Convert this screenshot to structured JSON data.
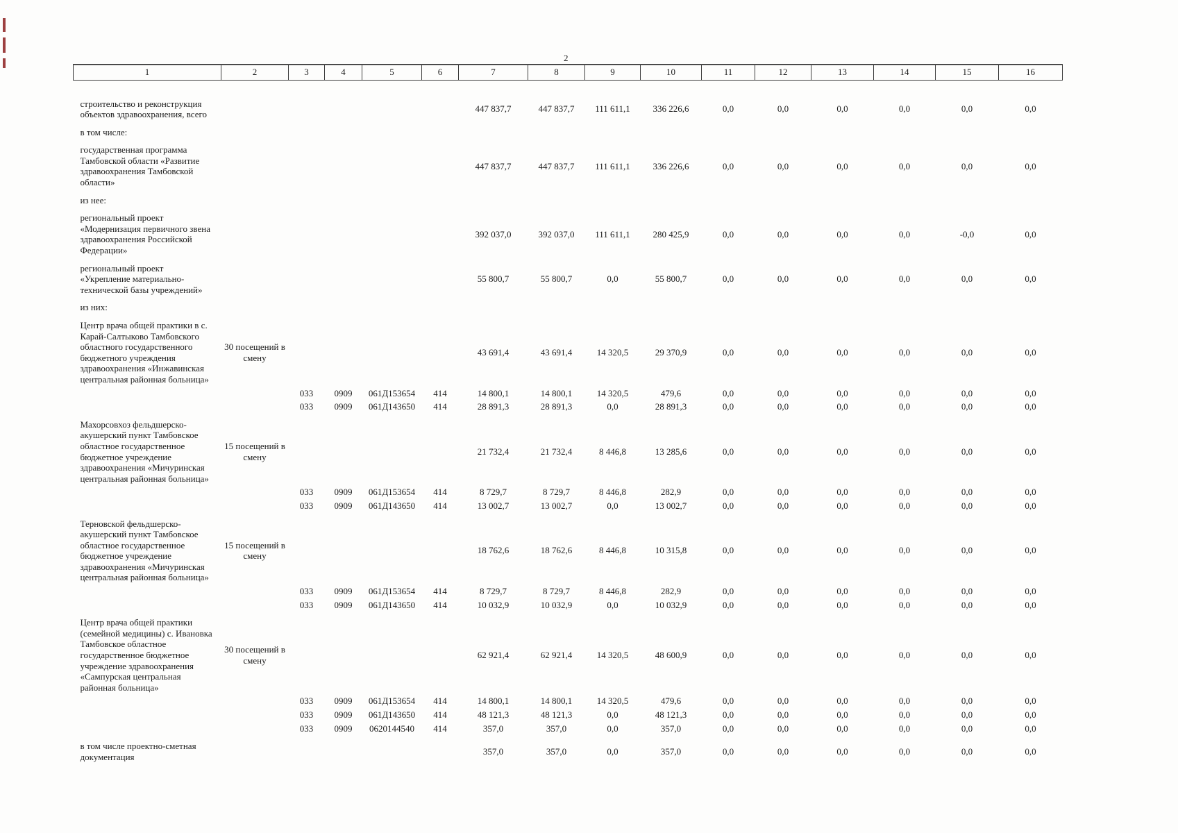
{
  "page": {
    "number": "2"
  },
  "table": {
    "columns": [
      "1",
      "2",
      "3",
      "4",
      "5",
      "6",
      "7",
      "8",
      "9",
      "10",
      "11",
      "12",
      "13",
      "14",
      "15",
      "16"
    ],
    "rows": [
      {
        "cells": [
          "строительство и реконструкция объектов здравоохранения, всего",
          "",
          "",
          "",
          "",
          "",
          "447 837,7",
          "447 837,7",
          "111 611,1",
          "336 226,6",
          "0,0",
          "0,0",
          "0,0",
          "0,0",
          "0,0",
          "0,0"
        ]
      },
      {
        "cells": [
          "в том числе:",
          "",
          "",
          "",
          "",
          "",
          "",
          "",
          "",
          "",
          "",
          "",
          "",
          "",
          "",
          ""
        ]
      },
      {
        "cells": [
          "государственная программа Тамбовской области «Развитие здравоохранения Тамбовской области»",
          "",
          "",
          "",
          "",
          "",
          "447 837,7",
          "447 837,7",
          "111 611,1",
          "336 226,6",
          "0,0",
          "0,0",
          "0,0",
          "0,0",
          "0,0",
          "0,0"
        ]
      },
      {
        "cells": [
          "из нее:",
          "",
          "",
          "",
          "",
          "",
          "",
          "",
          "",
          "",
          "",
          "",
          "",
          "",
          "",
          ""
        ]
      },
      {
        "cells": [
          "региональный проект «Модернизация первичного звена здравоохранения Российской Федерации»",
          "",
          "",
          "",
          "",
          "",
          "392 037,0",
          "392 037,0",
          "111 611,1",
          "280 425,9",
          "0,0",
          "0,0",
          "0,0",
          "0,0",
          "-0,0",
          "0,0"
        ]
      },
      {
        "cells": [
          "региональный проект «Укрепление материально-технической базы учреждений»",
          "",
          "",
          "",
          "",
          "",
          "55 800,7",
          "55 800,7",
          "0,0",
          "55 800,7",
          "0,0",
          "0,0",
          "0,0",
          "0,0",
          "0,0",
          "0,0"
        ]
      },
      {
        "cells": [
          "из них:",
          "",
          "",
          "",
          "",
          "",
          "",
          "",
          "",
          "",
          "",
          "",
          "",
          "",
          "",
          ""
        ]
      },
      {
        "cells": [
          "Центр врача общей практики в с. Карай-Салтыково Тамбовского областного государственного бюджетного учреждения здравоохранения «Инжавинская центральная районная больница»",
          "30 посещений в смену",
          "",
          "",
          "",
          "",
          "43 691,4",
          "43 691,4",
          "14 320,5",
          "29 370,9",
          "0,0",
          "0,0",
          "0,0",
          "0,0",
          "0,0",
          "0,0"
        ]
      },
      {
        "cells": [
          "",
          "",
          "033",
          "0909",
          "061Д153654",
          "414",
          "14 800,1",
          "14 800,1",
          "14 320,5",
          "479,6",
          "0,0",
          "0,0",
          "0,0",
          "0,0",
          "0,0",
          "0,0"
        ]
      },
      {
        "cells": [
          "",
          "",
          "033",
          "0909",
          "061Д143650",
          "414",
          "28 891,3",
          "28 891,3",
          "0,0",
          "28 891,3",
          "0,0",
          "0,0",
          "0,0",
          "0,0",
          "0,0",
          "0,0"
        ]
      },
      {
        "cells": [
          "Махорсовхоз фельдшерско-акушерский пункт Тамбовское областное государственное бюджетное учреждение здравоохранения «Мичуринская центральная районная больница»",
          "15 посещений в смену",
          "",
          "",
          "",
          "",
          "21 732,4",
          "21 732,4",
          "8 446,8",
          "13 285,6",
          "0,0",
          "0,0",
          "0,0",
          "0,0",
          "0,0",
          "0,0"
        ]
      },
      {
        "cells": [
          "",
          "",
          "033",
          "0909",
          "061Д153654",
          "414",
          "8 729,7",
          "8 729,7",
          "8 446,8",
          "282,9",
          "0,0",
          "0,0",
          "0,0",
          "0,0",
          "0,0",
          "0,0"
        ]
      },
      {
        "cells": [
          "",
          "",
          "033",
          "0909",
          "061Д143650",
          "414",
          "13 002,7",
          "13 002,7",
          "0,0",
          "13 002,7",
          "0,0",
          "0,0",
          "0,0",
          "0,0",
          "0,0",
          "0,0"
        ]
      },
      {
        "cells": [
          "Терновской фельдшерско-акушерский пункт Тамбовское областное государственное бюджетное учреждение здравоохранения «Мичуринская центральная районная больница»",
          "15 посещений в смену",
          "",
          "",
          "",
          "",
          "18 762,6",
          "18 762,6",
          "8 446,8",
          "10 315,8",
          "0,0",
          "0,0",
          "0,0",
          "0,0",
          "0,0",
          "0,0"
        ]
      },
      {
        "cells": [
          "",
          "",
          "033",
          "0909",
          "061Д153654",
          "414",
          "8 729,7",
          "8 729,7",
          "8 446,8",
          "282,9",
          "0,0",
          "0,0",
          "0,0",
          "0,0",
          "0,0",
          "0,0"
        ]
      },
      {
        "cells": [
          "",
          "",
          "033",
          "0909",
          "061Д143650",
          "414",
          "10 032,9",
          "10 032,9",
          "0,0",
          "10 032,9",
          "0,0",
          "0,0",
          "0,0",
          "0,0",
          "0,0",
          "0,0"
        ]
      },
      {
        "cells": [
          "Центр врача общей практики (семейной медицины) с. Ивановка Тамбовское областное государственное бюджетное учреждение здравоохранения «Сампурская центральная районная больница»",
          "30 посещений в смену",
          "",
          "",
          "",
          "",
          "62 921,4",
          "62 921,4",
          "14 320,5",
          "48 600,9",
          "0,0",
          "0,0",
          "0,0",
          "0,0",
          "0,0",
          "0,0"
        ]
      },
      {
        "cells": [
          "",
          "",
          "033",
          "0909",
          "061Д153654",
          "414",
          "14 800,1",
          "14 800,1",
          "14 320,5",
          "479,6",
          "0,0",
          "0,0",
          "0,0",
          "0,0",
          "0,0",
          "0,0"
        ]
      },
      {
        "cells": [
          "",
          "",
          "033",
          "0909",
          "061Д143650",
          "414",
          "48 121,3",
          "48 121,3",
          "0,0",
          "48 121,3",
          "0,0",
          "0,0",
          "0,0",
          "0,0",
          "0,0",
          "0,0"
        ]
      },
      {
        "cells": [
          "",
          "",
          "033",
          "0909",
          "0620144540",
          "414",
          "357,0",
          "357,0",
          "0,0",
          "357,0",
          "0,0",
          "0,0",
          "0,0",
          "0,0",
          "0,0",
          "0,0"
        ]
      },
      {
        "cells": [
          "в том числе проектно-сметная документация",
          "",
          "",
          "",
          "",
          "",
          "357,0",
          "357,0",
          "0,0",
          "357,0",
          "0,0",
          "0,0",
          "0,0",
          "0,0",
          "0,0",
          "0,0"
        ]
      }
    ]
  }
}
